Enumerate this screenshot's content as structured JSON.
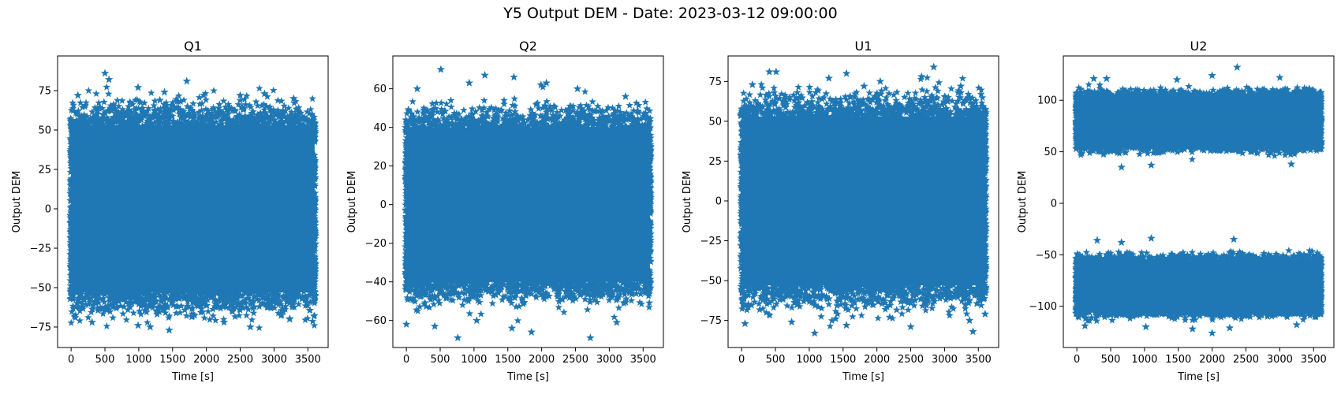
{
  "figure": {
    "suptitle": "Y5 Output DEM - Date: 2023-03-12 09:00:00"
  },
  "colors": {
    "series": "#1f77b4",
    "axes": "#000000",
    "background": "#ffffff"
  },
  "chart_data": [
    {
      "type": "scatter",
      "title": "Q1",
      "xlabel": "Time [s]",
      "ylabel": "Output DEM",
      "marker": "star",
      "xlim": [
        -200,
        3800
      ],
      "ylim": [
        -88,
        97
      ],
      "xticks": [
        0,
        500,
        1000,
        1500,
        2000,
        2500,
        3000,
        3500
      ],
      "yticks": [
        -75,
        -50,
        -25,
        0,
        25,
        50,
        75
      ],
      "x_range": [
        0,
        3600
      ],
      "bands": [
        {
          "center": 0,
          "spread": 22,
          "dense_min": -58,
          "dense_max": 58
        }
      ],
      "outliers": [
        [
          500,
          86
        ],
        [
          560,
          82
        ],
        [
          1710,
          81
        ],
        [
          990,
          77
        ],
        [
          2860,
          73
        ],
        [
          3290,
          70
        ],
        [
          100,
          72
        ],
        [
          1380,
          74
        ],
        [
          2500,
          72
        ],
        [
          1960,
          72
        ],
        [
          1450,
          -77
        ],
        [
          1170,
          -75
        ],
        [
          2650,
          -75
        ],
        [
          990,
          -74
        ],
        [
          2260,
          -72
        ],
        [
          310,
          -72
        ],
        [
          3230,
          -70
        ],
        [
          60,
          -69
        ]
      ]
    },
    {
      "type": "scatter",
      "title": "Q2",
      "xlabel": "Time [s]",
      "ylabel": "Output DEM",
      "marker": "star",
      "xlim": [
        -200,
        3800
      ],
      "ylim": [
        -74,
        77
      ],
      "xticks": [
        0,
        500,
        1000,
        1500,
        2000,
        2500,
        3000,
        3500
      ],
      "yticks": [
        -60,
        -40,
        -20,
        0,
        20,
        40,
        60
      ],
      "x_range": [
        0,
        3600
      ],
      "bands": [
        {
          "center": 0,
          "spread": 17,
          "dense_min": -45,
          "dense_max": 45
        }
      ],
      "outliers": [
        [
          510,
          70
        ],
        [
          1160,
          67
        ],
        [
          1590,
          66
        ],
        [
          2070,
          63
        ],
        [
          930,
          63
        ],
        [
          1990,
          62
        ],
        [
          2530,
          60
        ],
        [
          160,
          60
        ],
        [
          3240,
          56
        ],
        [
          760,
          -69
        ],
        [
          2720,
          -69
        ],
        [
          1850,
          -66
        ],
        [
          1560,
          -64
        ],
        [
          0,
          -62
        ],
        [
          420,
          -63
        ],
        [
          1040,
          -60
        ],
        [
          3110,
          -61
        ]
      ]
    },
    {
      "type": "scatter",
      "title": "U1",
      "xlabel": "Time [s]",
      "ylabel": "Output DEM",
      "marker": "star",
      "xlim": [
        -200,
        3800
      ],
      "ylim": [
        -92,
        91
      ],
      "xticks": [
        0,
        500,
        1000,
        1500,
        2000,
        2500,
        3000,
        3500
      ],
      "yticks": [
        -75,
        -50,
        -25,
        0,
        25,
        50,
        75
      ],
      "x_range": [
        0,
        3600
      ],
      "bands": [
        {
          "center": 0,
          "spread": 22,
          "dense_min": -58,
          "dense_max": 58
        }
      ],
      "outliers": [
        [
          2840,
          84
        ],
        [
          410,
          81
        ],
        [
          510,
          81
        ],
        [
          1550,
          80
        ],
        [
          2660,
          78
        ],
        [
          1290,
          77
        ],
        [
          2050,
          75
        ],
        [
          160,
          73
        ],
        [
          3240,
          72
        ],
        [
          1810,
          72
        ],
        [
          1080,
          -83
        ],
        [
          3420,
          -82
        ],
        [
          50,
          -77
        ],
        [
          1550,
          -78
        ],
        [
          2500,
          -79
        ],
        [
          3370,
          -75
        ],
        [
          740,
          -76
        ],
        [
          1390,
          -74
        ],
        [
          2190,
          -73
        ],
        [
          3600,
          -71
        ]
      ]
    },
    {
      "type": "scatter",
      "title": "U2",
      "xlabel": "Time [s]",
      "ylabel": "Output DEM",
      "marker": "star",
      "xlim": [
        -200,
        3800
      ],
      "ylim": [
        -140,
        143
      ],
      "xticks": [
        0,
        500,
        1000,
        1500,
        2000,
        2500,
        3000,
        3500
      ],
      "yticks": [
        -100,
        -50,
        0,
        50,
        100
      ],
      "x_range": [
        0,
        3600
      ],
      "bands": [
        {
          "center": 80,
          "spread": 12,
          "dense_min": 52,
          "dense_max": 108
        },
        {
          "center": -80,
          "spread": 12,
          "dense_min": -108,
          "dense_max": -52
        }
      ],
      "outliers": [
        [
          2370,
          132
        ],
        [
          2000,
          124
        ],
        [
          440,
          121
        ],
        [
          1480,
          120
        ],
        [
          3000,
          122
        ],
        [
          250,
          121
        ],
        [
          660,
          35
        ],
        [
          1100,
          37
        ],
        [
          3170,
          38
        ],
        [
          300,
          -36
        ],
        [
          1100,
          -34
        ],
        [
          2320,
          -35
        ],
        [
          660,
          -38
        ],
        [
          2000,
          -126
        ],
        [
          1710,
          -122
        ],
        [
          2260,
          -121
        ],
        [
          1020,
          -120
        ],
        [
          120,
          -119
        ],
        [
          3250,
          -118
        ]
      ]
    }
  ]
}
